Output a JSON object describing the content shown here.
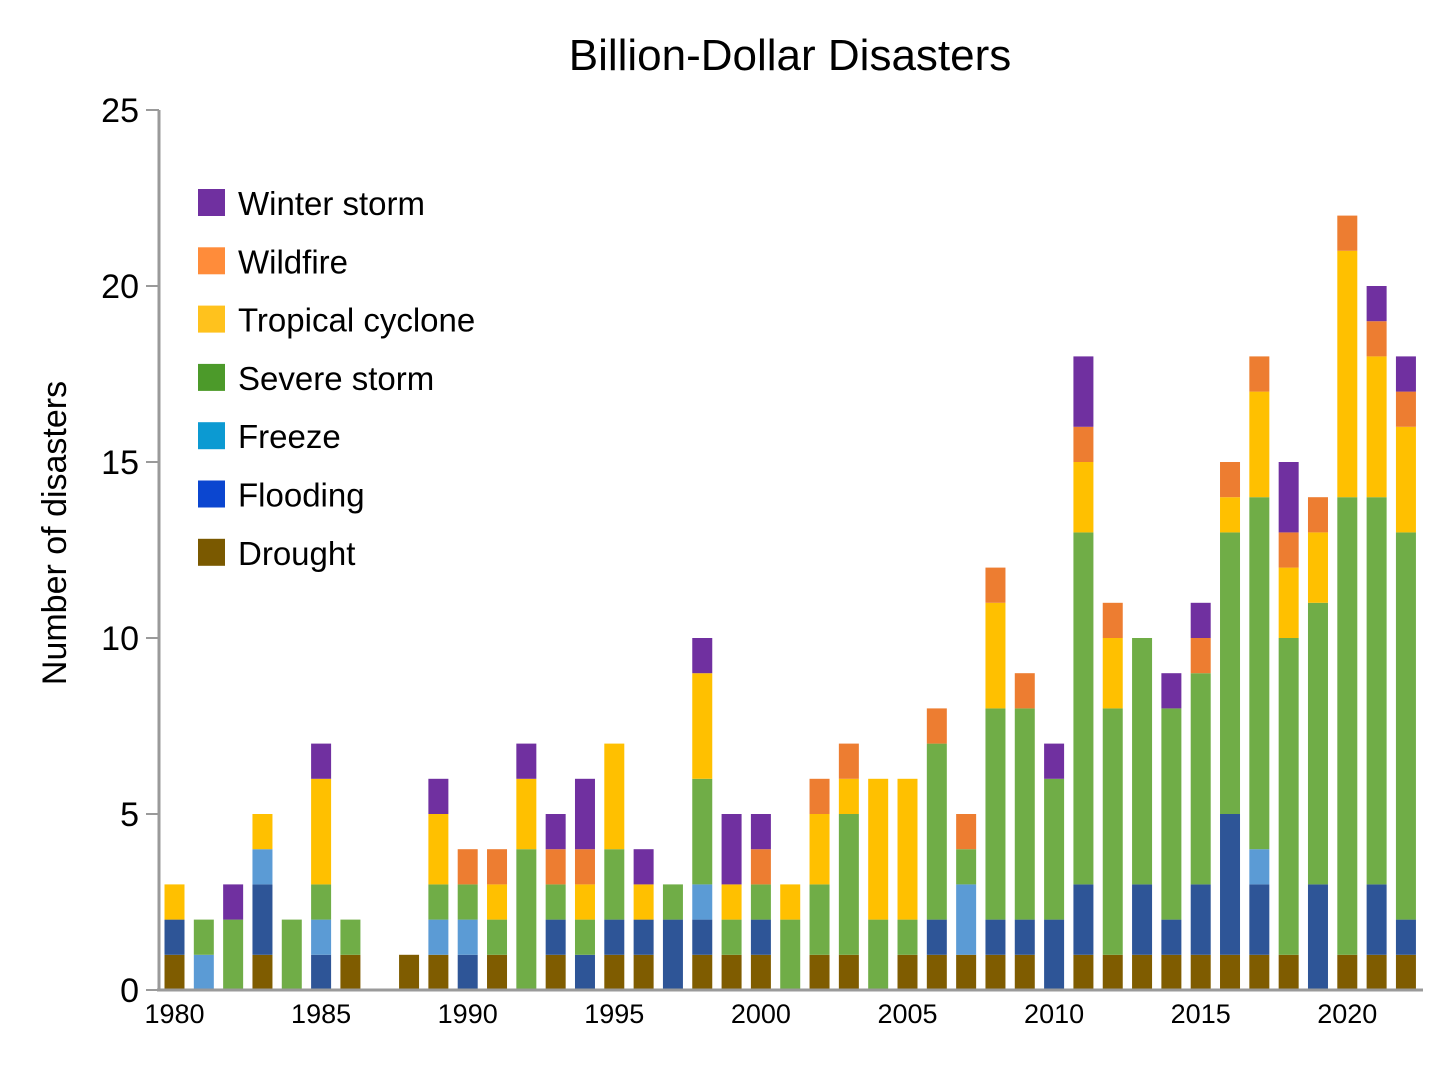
{
  "chart_data": {
    "type": "bar",
    "stacked": true,
    "title": "Billion-Dollar Disasters",
    "xlabel": "",
    "ylabel": "Number of disasters",
    "ylim": [
      0,
      25
    ],
    "yticks": [
      0,
      5,
      10,
      15,
      20,
      25
    ],
    "xticks": [
      "1980",
      "1985",
      "1990",
      "1995",
      "2000",
      "2005",
      "2010",
      "2015",
      "2020"
    ],
    "grid": false,
    "legend_position": "top-left",
    "legend": [
      {
        "name": "Winter storm",
        "color": "#7030a0"
      },
      {
        "name": "Wildfire",
        "color": "#ff8c3a"
      },
      {
        "name": "Tropical cyclone",
        "color": "#ffc21d"
      },
      {
        "name": "Severe storm",
        "color": "#4c9a2a"
      },
      {
        "name": "Freeze",
        "color": "#0c9ad2"
      },
      {
        "name": "Flooding",
        "color": "#0b46d0"
      },
      {
        "name": "Drought",
        "color": "#7a5900"
      }
    ],
    "bar_colors": {
      "Drought": "#7f5c00",
      "Flooding": "#2e5597",
      "Freeze": "#5b9bd5",
      "Severe storm": "#70ad47",
      "Tropical cyclone": "#ffc000",
      "Wildfire": "#ed7d31",
      "Winter storm": "#7030a0"
    },
    "stack_order": [
      "Drought",
      "Flooding",
      "Freeze",
      "Severe storm",
      "Tropical cyclone",
      "Wildfire",
      "Winter storm"
    ],
    "categories": [
      1980,
      1981,
      1982,
      1983,
      1984,
      1985,
      1986,
      1987,
      1988,
      1989,
      1990,
      1991,
      1992,
      1993,
      1994,
      1995,
      1996,
      1997,
      1998,
      1999,
      2000,
      2001,
      2002,
      2003,
      2004,
      2005,
      2006,
      2007,
      2008,
      2009,
      2010,
      2011,
      2012,
      2013,
      2014,
      2015,
      2016,
      2017,
      2018,
      2019,
      2020,
      2021,
      2022
    ],
    "series": [
      {
        "name": "Drought",
        "values": [
          1,
          0,
          0,
          1,
          0,
          0,
          1,
          0,
          1,
          1,
          0,
          1,
          0,
          1,
          0,
          1,
          1,
          0,
          1,
          1,
          1,
          0,
          1,
          1,
          0,
          1,
          1,
          1,
          1,
          1,
          0,
          1,
          1,
          1,
          1,
          1,
          1,
          1,
          1,
          0,
          1,
          1,
          1
        ]
      },
      {
        "name": "Flooding",
        "values": [
          1,
          0,
          0,
          2,
          0,
          1,
          0,
          0,
          0,
          0,
          1,
          0,
          0,
          1,
          1,
          1,
          1,
          2,
          1,
          0,
          1,
          0,
          0,
          0,
          0,
          0,
          1,
          0,
          1,
          1,
          2,
          2,
          0,
          2,
          1,
          2,
          4,
          2,
          0,
          3,
          0,
          2,
          1
        ]
      },
      {
        "name": "Freeze",
        "values": [
          0,
          1,
          0,
          1,
          0,
          1,
          0,
          0,
          0,
          1,
          1,
          0,
          0,
          0,
          0,
          0,
          0,
          0,
          1,
          0,
          0,
          0,
          0,
          0,
          0,
          0,
          0,
          2,
          0,
          0,
          0,
          0,
          0,
          0,
          0,
          0,
          0,
          1,
          0,
          0,
          0,
          0,
          0
        ]
      },
      {
        "name": "Severe storm",
        "values": [
          0,
          1,
          2,
          0,
          2,
          1,
          1,
          0,
          0,
          1,
          1,
          1,
          4,
          1,
          1,
          2,
          0,
          1,
          3,
          1,
          1,
          2,
          2,
          4,
          2,
          1,
          5,
          1,
          6,
          6,
          4,
          10,
          7,
          7,
          6,
          6,
          8,
          10,
          9,
          8,
          13,
          11,
          11
        ]
      },
      {
        "name": "Tropical cyclone",
        "values": [
          1,
          0,
          0,
          1,
          0,
          3,
          0,
          0,
          0,
          2,
          0,
          1,
          2,
          0,
          1,
          3,
          1,
          0,
          3,
          1,
          0,
          1,
          2,
          1,
          4,
          4,
          0,
          0,
          3,
          0,
          0,
          2,
          2,
          0,
          0,
          0,
          1,
          3,
          2,
          2,
          7,
          4,
          3
        ]
      },
      {
        "name": "Wildfire",
        "values": [
          0,
          0,
          0,
          0,
          0,
          0,
          0,
          0,
          0,
          0,
          1,
          1,
          0,
          1,
          1,
          0,
          0,
          0,
          0,
          0,
          1,
          0,
          1,
          1,
          0,
          0,
          1,
          1,
          1,
          1,
          0,
          1,
          1,
          0,
          0,
          1,
          1,
          1,
          1,
          1,
          1,
          1,
          1
        ]
      },
      {
        "name": "Winter storm",
        "values": [
          0,
          0,
          1,
          0,
          0,
          1,
          0,
          0,
          0,
          1,
          0,
          0,
          1,
          1,
          2,
          0,
          1,
          0,
          1,
          2,
          1,
          0,
          0,
          0,
          0,
          0,
          0,
          0,
          0,
          0,
          1,
          2,
          0,
          0,
          1,
          1,
          0,
          0,
          2,
          0,
          0,
          1,
          1
        ]
      }
    ]
  }
}
